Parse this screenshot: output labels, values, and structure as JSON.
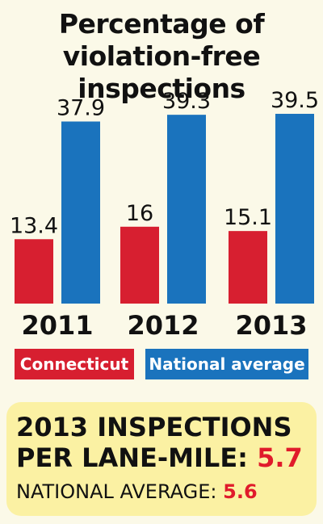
{
  "chart_data": {
    "type": "bar",
    "title_lines": [
      "Percentage of",
      "violation-free inspections"
    ],
    "categories": [
      "2011",
      "2012",
      "2013"
    ],
    "series": [
      {
        "name": "Connecticut",
        "values": [
          13.4,
          16,
          15.1
        ],
        "color": "#d71f30"
      },
      {
        "name": "National average",
        "values": [
          37.9,
          39.3,
          39.5
        ],
        "color": "#1a73bd"
      }
    ],
    "value_labels": [
      [
        "13.4",
        "37.9"
      ],
      [
        "16",
        "39.3"
      ],
      [
        "15.1",
        "39.5"
      ]
    ]
  },
  "legend": {
    "connecticut": "Connecticut",
    "national": "National average"
  },
  "callout": {
    "line1": "2013 INSPECTIONS",
    "line2_label": "PER LANE-MILE: ",
    "line2_value": "5.7",
    "line3_label": "NATIONAL AVERAGE: ",
    "line3_value": "5.6"
  }
}
